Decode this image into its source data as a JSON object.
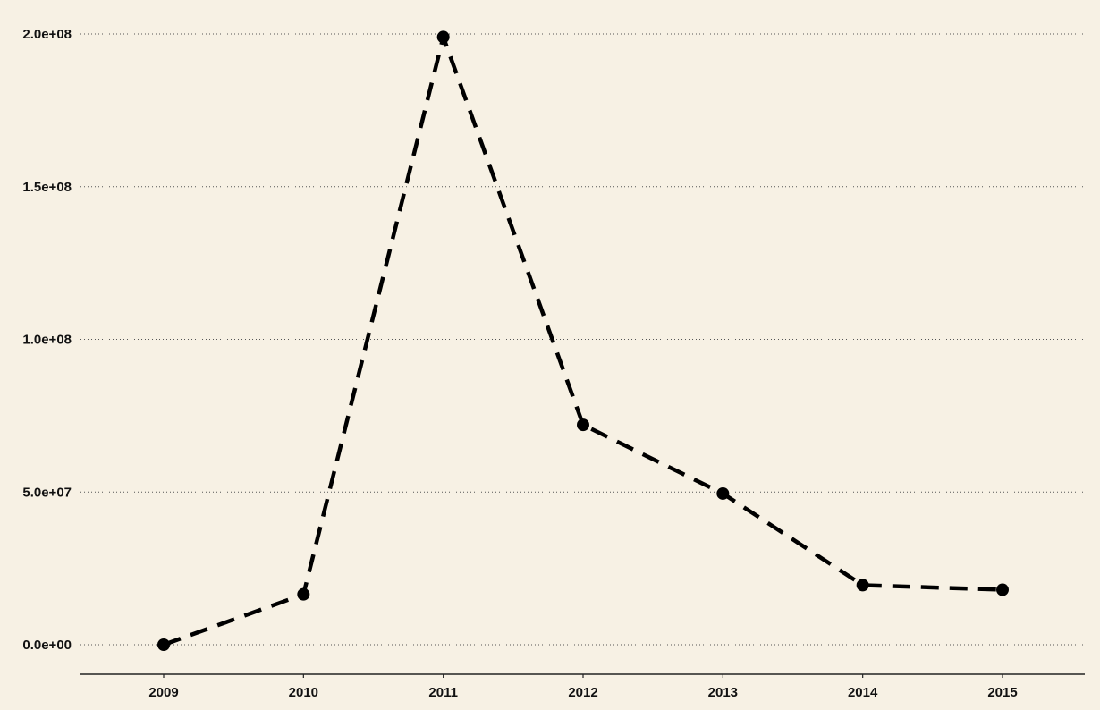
{
  "chart_data": {
    "type": "line",
    "title": "",
    "xlabel": "",
    "ylabel": "",
    "x": [
      "2009",
      "2010",
      "2011",
      "2012",
      "2013",
      "2014",
      "2015"
    ],
    "series": [
      {
        "values": [
          0,
          16500000,
          199000000,
          72000000,
          49500000,
          19500000,
          18000000
        ]
      }
    ],
    "ylim": [
      0,
      200000000
    ],
    "yticks": [
      0,
      50000000,
      100000000,
      150000000,
      200000000
    ],
    "ytick_labels": [
      "0.0e+00",
      "5.0e+07",
      "1.0e+08",
      "1.5e+08",
      "2.0e+08"
    ],
    "xtick_labels": [
      "2009",
      "2010",
      "2011",
      "2012",
      "2013",
      "2014",
      "2015"
    ],
    "grid": "horizontal dotted",
    "line_style": "dashed",
    "markers": "filled circles",
    "colors": {
      "background": "#f7f1e4",
      "line": "#000000",
      "grid": "#555555",
      "axis": "#222222"
    }
  }
}
